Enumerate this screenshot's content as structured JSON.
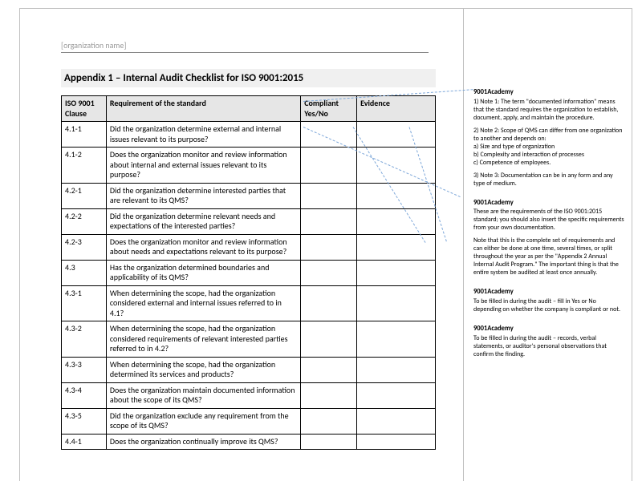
{
  "placeholder": "[organization name]",
  "title": "Appendix 1 – Internal Audit Checklist for ISO 9001:2015",
  "columns": [
    "ISO 9001 Clause",
    "Requirement of the standard",
    "Compliant Yes/No",
    "Evidence"
  ],
  "rows": [
    [
      "4.1-1",
      "Did the organization determine external and internal issues relevant to its purpose?",
      "",
      ""
    ],
    [
      "4.1-2",
      "Does the organization monitor and review information about internal and external issues relevant to its purpose?",
      "",
      ""
    ],
    [
      "4.2-1",
      "Did the organization determine interested parties that are relevant to its QMS?",
      "",
      ""
    ],
    [
      "4.2-2",
      "Did the organization determine relevant needs and expectations of the interested parties?",
      "",
      ""
    ],
    [
      "4.2-3",
      "Does the organization monitor and review information about needs and expectations relevant to its purpose?",
      "",
      ""
    ],
    [
      "4.3",
      "Has the organization determined boundaries and applicability of its QMS?",
      "",
      ""
    ],
    [
      "4.3-1",
      "When determining the scope, had the organization considered external and internal issues referred to in 4.1?",
      "",
      ""
    ],
    [
      "4.3-2",
      "When determining the scope, had the organization considered requirements of relevant interested parties referred to in 4.2?",
      "",
      ""
    ],
    [
      "4.3-3",
      "When determining the scope, had the organization determined its services and products?",
      "",
      ""
    ],
    [
      "4.3-4",
      "Does the organization maintain documented information about the scope of its QMS?",
      "",
      ""
    ],
    [
      "4.3-5",
      "Did the organization exclude any requirement from the scope of its QMS?",
      "",
      ""
    ],
    [
      "4.4-1",
      "Does the organization continually improve its QMS?",
      "",
      ""
    ]
  ],
  "comments": [
    {
      "author": "9001Academy",
      "paragraphs": [
        "1) Note 1: The term \"documented information\" means that the standard requires the organization to establish, document, apply, and maintain the procedure.",
        "2) Note 2: Scope of QMS can differ from one organization to another and depends on:\na) Size and type of organization\nb) Complexity and interaction of processes\nc) Competence of employees.",
        "3) Note 3: Documentation can be in any form and any type of medium."
      ]
    },
    {
      "author": "9001Academy",
      "paragraphs": [
        "These are the requirements of the ISO 9001:2015 standard; you should also insert the specific requirements from your own documentation.",
        "Note that this is the complete set of requirements and can either be done at one time, several times, or split throughout the year as per the \"Appendix 2 Annual Internal Audit Program.\" The important thing is that the entire system be audited at least once annually."
      ]
    },
    {
      "author": "9001Academy",
      "paragraphs": [
        "To be filled in during the audit – fill in Yes or No depending on whether the company is compliant or not."
      ]
    },
    {
      "author": "9001Academy",
      "paragraphs": [
        "To be filled in during the audit – records, verbal statements, or auditor's personal observations that confirm the finding."
      ]
    }
  ],
  "colors": {
    "header_bg": "#e6e6e6",
    "title_bg": "#f0f0f0",
    "border": "#000000",
    "leader": "#7da7d9",
    "placeholder": "#9a9a9a"
  }
}
